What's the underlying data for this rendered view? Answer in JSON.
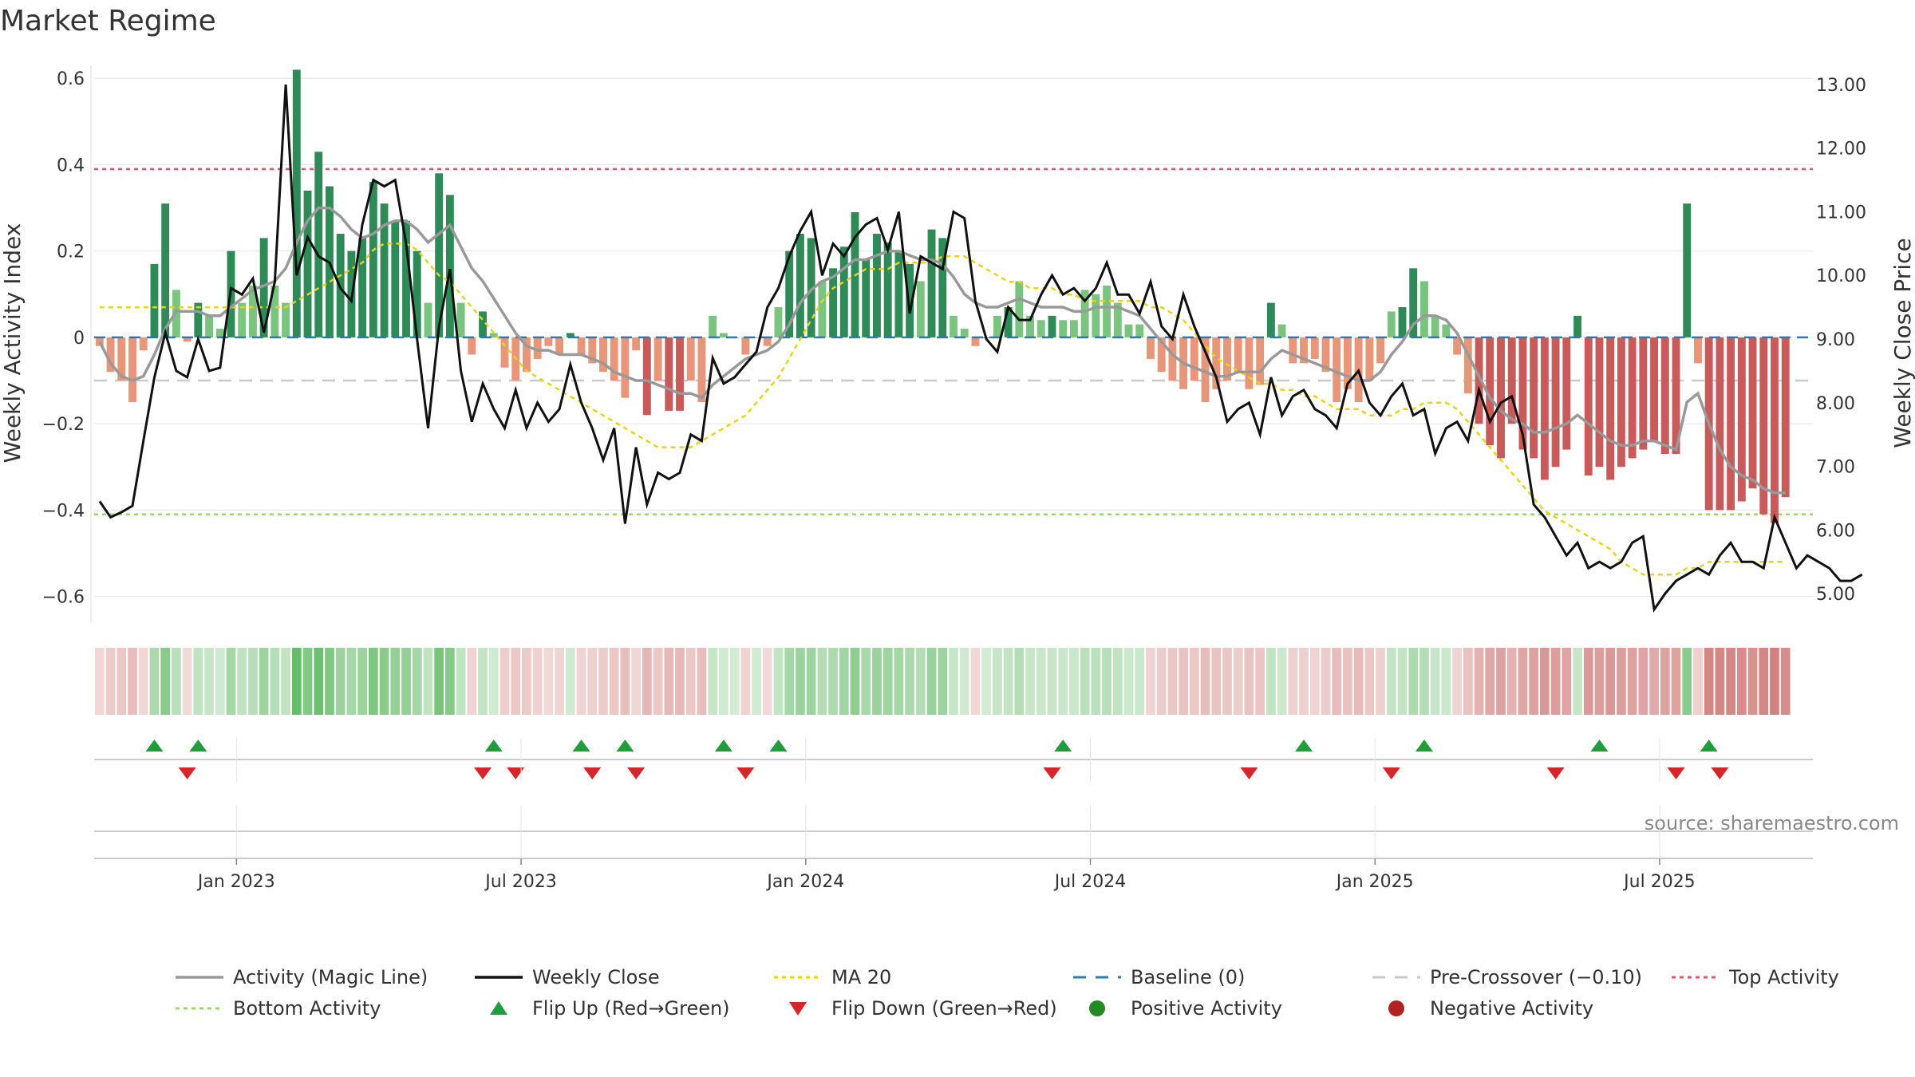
{
  "title": "Market Regime",
  "source": "source: sharemaestro.com",
  "chart_data": {
    "type": "bar",
    "title": "Market Regime",
    "ylabel_left": "Weekly Activity Index",
    "ylabel_right": "Weekly Close Price",
    "y_left_ticks": [
      "0.6",
      "0.4",
      "0.2",
      "0",
      "−0.2",
      "−0.4",
      "−0.6"
    ],
    "y_left_values": [
      0.6,
      0.4,
      0.2,
      0,
      -0.2,
      -0.4,
      -0.6
    ],
    "y_left_range": [
      -0.66,
      0.63
    ],
    "y_right_ticks": [
      "13.00",
      "12.00",
      "11.00",
      "10.00",
      "9.00",
      "8.00",
      "7.00",
      "6.00",
      "5.00"
    ],
    "y_right_values": [
      13,
      12,
      11,
      10,
      9,
      8,
      7,
      6,
      5
    ],
    "y_right_range": [
      4.55,
      13.3
    ],
    "x_ticks": [
      "Jan 2023",
      "Jul 2023",
      "Jan 2024",
      "Jul 2024",
      "Jan 2025",
      "Jul 2025"
    ],
    "x_tick_week_index": [
      13,
      39,
      65,
      91,
      117,
      143
    ],
    "n_weeks": 157,
    "top_activity": 0.39,
    "bottom_activity": -0.41,
    "pre_crossover": -0.1,
    "baseline": 0,
    "activity": [
      -0.02,
      -0.08,
      -0.1,
      -0.15,
      -0.03,
      0.17,
      0.31,
      0.11,
      -0.01,
      0.08,
      0.05,
      0.02,
      0.2,
      0.08,
      0.12,
      0.23,
      0.12,
      0.08,
      0.62,
      0.34,
      0.43,
      0.35,
      0.24,
      0.2,
      0.23,
      0.36,
      0.31,
      0.27,
      0.27,
      0.2,
      0.08,
      0.38,
      0.33,
      0.08,
      -0.04,
      0.06,
      0.01,
      -0.07,
      -0.1,
      -0.08,
      -0.05,
      -0.02,
      -0.04,
      0.01,
      -0.04,
      -0.06,
      -0.08,
      -0.1,
      -0.14,
      -0.03,
      -0.18,
      -0.1,
      -0.17,
      -0.17,
      -0.1,
      -0.15,
      0.05,
      0.01,
      0.0,
      -0.04,
      0.0,
      -0.02,
      0.07,
      0.2,
      0.24,
      0.23,
      0.13,
      0.16,
      0.21,
      0.29,
      0.18,
      0.24,
      0.22,
      0.2,
      0.17,
      0.13,
      0.25,
      0.23,
      0.05,
      0.02,
      -0.02,
      0.0,
      0.05,
      0.07,
      0.13,
      0.05,
      0.04,
      0.05,
      0.04,
      0.04,
      0.11,
      0.1,
      0.12,
      0.08,
      0.03,
      0.03,
      -0.05,
      -0.08,
      -0.1,
      -0.12,
      -0.1,
      -0.15,
      -0.12,
      -0.1,
      -0.08,
      -0.12,
      -0.11,
      0.08,
      0.03,
      -0.06,
      -0.06,
      -0.05,
      -0.08,
      -0.15,
      -0.12,
      -0.15,
      -0.1,
      -0.06,
      0.06,
      0.07,
      0.16,
      0.13,
      0.05,
      0.03,
      -0.04,
      -0.13,
      -0.2,
      -0.25,
      -0.28,
      -0.2,
      -0.26,
      -0.28,
      -0.33,
      -0.3,
      -0.26,
      0.05,
      -0.32,
      -0.3,
      -0.33,
      -0.3,
      -0.28,
      -0.26,
      -0.24,
      -0.27,
      -0.27,
      0.31,
      -0.06,
      -0.4,
      -0.4,
      -0.4,
      -0.38,
      -0.35,
      -0.41,
      -0.43,
      -0.37
    ],
    "magic_line": [
      -0.01,
      -0.06,
      -0.09,
      -0.1,
      -0.09,
      -0.04,
      0.02,
      0.06,
      0.06,
      0.06,
      0.05,
      0.05,
      0.07,
      0.09,
      0.11,
      0.12,
      0.13,
      0.16,
      0.22,
      0.27,
      0.3,
      0.3,
      0.28,
      0.25,
      0.23,
      0.24,
      0.26,
      0.27,
      0.27,
      0.25,
      0.22,
      0.24,
      0.26,
      0.21,
      0.16,
      0.13,
      0.09,
      0.05,
      0.01,
      -0.02,
      -0.03,
      -0.03,
      -0.04,
      -0.04,
      -0.04,
      -0.05,
      -0.06,
      -0.08,
      -0.09,
      -0.1,
      -0.1,
      -0.11,
      -0.12,
      -0.13,
      -0.13,
      -0.14,
      -0.11,
      -0.09,
      -0.07,
      -0.05,
      -0.04,
      -0.03,
      -0.01,
      0.03,
      0.08,
      0.11,
      0.13,
      0.14,
      0.16,
      0.18,
      0.18,
      0.19,
      0.2,
      0.2,
      0.19,
      0.18,
      0.18,
      0.17,
      0.14,
      0.1,
      0.08,
      0.07,
      0.07,
      0.08,
      0.09,
      0.08,
      0.07,
      0.07,
      0.07,
      0.06,
      0.06,
      0.07,
      0.07,
      0.07,
      0.06,
      0.05,
      0.02,
      -0.01,
      -0.04,
      -0.06,
      -0.07,
      -0.08,
      -0.09,
      -0.09,
      -0.08,
      -0.08,
      -0.08,
      -0.05,
      -0.03,
      -0.04,
      -0.05,
      -0.06,
      -0.07,
      -0.08,
      -0.09,
      -0.1,
      -0.1,
      -0.08,
      -0.04,
      -0.01,
      0.03,
      0.05,
      0.05,
      0.04,
      0.01,
      -0.04,
      -0.09,
      -0.14,
      -0.17,
      -0.19,
      -0.2,
      -0.22,
      -0.22,
      -0.21,
      -0.2,
      -0.18,
      -0.2,
      -0.22,
      -0.24,
      -0.25,
      -0.25,
      -0.24,
      -0.24,
      -0.25,
      -0.26,
      -0.15,
      -0.13,
      -0.2,
      -0.26,
      -0.3,
      -0.32,
      -0.33,
      -0.35,
      -0.36,
      -0.36
    ],
    "weekly_close": [
      6.45,
      6.2,
      6.28,
      6.38,
      7.4,
      8.4,
      9.1,
      8.5,
      8.4,
      9.0,
      8.5,
      8.55,
      9.8,
      9.7,
      9.95,
      9.1,
      9.9,
      13.0,
      10.0,
      10.6,
      10.3,
      10.2,
      9.8,
      9.6,
      10.8,
      11.5,
      11.4,
      11.5,
      10.5,
      9.0,
      7.6,
      9.2,
      10.1,
      8.5,
      7.7,
      8.3,
      7.9,
      7.6,
      8.2,
      7.6,
      8.0,
      7.7,
      7.9,
      8.6,
      8.0,
      7.6,
      7.1,
      7.6,
      6.1,
      7.3,
      6.4,
      6.9,
      6.8,
      6.9,
      7.5,
      7.4,
      8.7,
      8.3,
      8.4,
      8.6,
      8.8,
      9.5,
      9.8,
      10.3,
      10.7,
      11.0,
      10.0,
      10.5,
      10.3,
      10.6,
      10.8,
      10.9,
      10.4,
      11.0,
      9.4,
      10.3,
      10.2,
      10.1,
      11.0,
      10.9,
      9.6,
      9.0,
      8.8,
      9.5,
      9.3,
      9.3,
      9.7,
      10.0,
      9.7,
      9.8,
      9.6,
      9.8,
      10.2,
      9.7,
      9.7,
      9.4,
      9.9,
      9.2,
      9.0,
      9.7,
      9.2,
      8.8,
      8.4,
      7.7,
      7.9,
      8.0,
      7.5,
      8.4,
      7.8,
      8.1,
      8.2,
      7.9,
      7.8,
      7.6,
      8.3,
      8.5,
      8.0,
      7.8,
      8.1,
      8.3,
      7.8,
      7.9,
      7.2,
      7.6,
      7.7,
      7.4,
      8.2,
      7.7,
      8.0,
      8.1,
      7.5,
      6.4,
      6.2,
      5.9,
      5.6,
      5.8,
      5.4,
      5.5,
      5.4,
      5.5,
      5.8,
      5.9,
      4.75,
      5.0,
      5.2,
      5.3,
      5.4,
      5.3,
      5.6,
      5.8,
      5.5,
      5.5,
      5.4,
      6.2,
      5.8,
      5.4,
      5.6,
      5.5,
      5.4,
      5.2,
      5.2,
      5.3
    ],
    "ma20": [
      9.5,
      9.5,
      9.5,
      9.5,
      9.5,
      9.5,
      9.5,
      9.5,
      9.5,
      9.5,
      9.5,
      9.5,
      9.5,
      9.5,
      9.5,
      9.5,
      9.5,
      9.5,
      9.6,
      9.7,
      9.8,
      9.9,
      10.0,
      10.1,
      10.2,
      10.4,
      10.5,
      10.5,
      10.5,
      10.4,
      10.2,
      10.0,
      9.9,
      9.7,
      9.5,
      9.3,
      9.1,
      8.9,
      8.7,
      8.5,
      8.4,
      8.3,
      8.2,
      8.1,
      8.0,
      7.9,
      7.8,
      7.7,
      7.6,
      7.5,
      7.4,
      7.3,
      7.3,
      7.3,
      7.3,
      7.4,
      7.5,
      7.6,
      7.7,
      7.8,
      8.0,
      8.2,
      8.4,
      8.7,
      9.0,
      9.3,
      9.6,
      9.8,
      9.9,
      10.0,
      10.1,
      10.1,
      10.1,
      10.2,
      10.2,
      10.2,
      10.2,
      10.3,
      10.3,
      10.3,
      10.2,
      10.1,
      10.0,
      9.9,
      9.9,
      9.8,
      9.8,
      9.8,
      9.7,
      9.7,
      9.6,
      9.6,
      9.6,
      9.6,
      9.6,
      9.6,
      9.5,
      9.5,
      9.4,
      9.3,
      9.1,
      8.9,
      8.7,
      8.6,
      8.5,
      8.4,
      8.3,
      8.3,
      8.2,
      8.2,
      8.1,
      8.1,
      8.0,
      7.9,
      7.9,
      7.9,
      7.8,
      7.8,
      7.8,
      7.9,
      7.9,
      8.0,
      8.0,
      8.0,
      7.9,
      7.7,
      7.5,
      7.3,
      7.1,
      6.9,
      6.7,
      6.5,
      6.3,
      6.2,
      6.1,
      6.0,
      5.9,
      5.8,
      5.7,
      5.5,
      5.4,
      5.3,
      5.3,
      5.3,
      5.3,
      5.4,
      5.4,
      5.5,
      5.5,
      5.5,
      5.5,
      5.5,
      5.5,
      5.5,
      5.5
    ],
    "flip_up_weeks": [
      5,
      9,
      36,
      44,
      48,
      57,
      62,
      88,
      110,
      121,
      137,
      147
    ],
    "flip_down_weeks": [
      8,
      35,
      38,
      45,
      49,
      59,
      87,
      105,
      118,
      133,
      144,
      148
    ],
    "legend": [
      {
        "label": "Activity (Magic Line)",
        "symbol": "line",
        "color": "#999999"
      },
      {
        "label": "Weekly Close",
        "symbol": "line",
        "color": "#111111"
      },
      {
        "label": "MA 20",
        "symbol": "dotted",
        "color": "#e8d21a"
      },
      {
        "label": "Baseline (0)",
        "symbol": "dashed",
        "color": "#2f79b5"
      },
      {
        "label": "Pre-Crossover (−0.10)",
        "symbol": "dashed",
        "color": "#c9c9c9"
      },
      {
        "label": "Top Activity",
        "symbol": "dotted",
        "color": "#e0556b"
      },
      {
        "label": "Bottom Activity",
        "symbol": "dotted",
        "color": "#9fd66b"
      },
      {
        "label": "Flip Up (Red→Green)",
        "symbol": "tri-up",
        "color": "#1f9e3e"
      },
      {
        "label": "Flip Down (Green→Red)",
        "symbol": "tri-down",
        "color": "#d62728"
      },
      {
        "label": "Positive Activity",
        "symbol": "dot",
        "color": "#228b22"
      },
      {
        "label": "Negative Activity",
        "symbol": "dot",
        "color": "#b22222"
      }
    ],
    "colors": {
      "pos_strong": "#2e8b57",
      "pos_light": "#7bc47f",
      "neg_strong": "#c85a5a",
      "neg_light": "#e8967a",
      "top": "#e0556b",
      "bottom": "#9fd66b",
      "pre": "#c9c9c9",
      "baseline": "#2f79b5",
      "ma": "#e8d21a",
      "magic": "#999999",
      "close": "#111111"
    }
  }
}
